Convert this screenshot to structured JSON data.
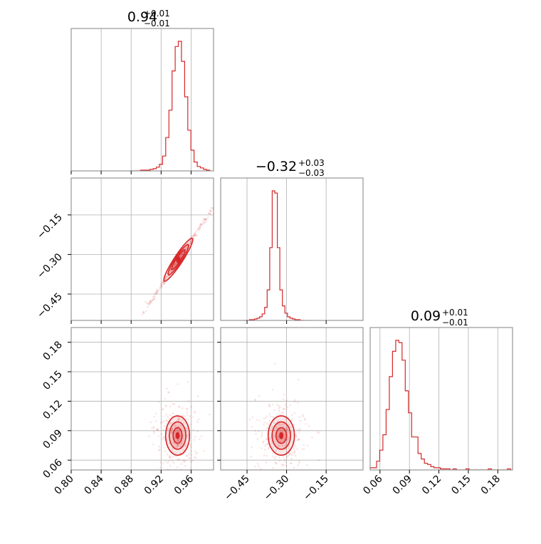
{
  "colors": {
    "accent": "#d62728",
    "grid": "#b0b0b0",
    "frame": "#808080"
  },
  "titles": {
    "p1": {
      "main": "0.94",
      "sup": "+0.01",
      "sub": "−0.01"
    },
    "p2": {
      "main": "−0.32",
      "sup": "+0.03",
      "sub": "−0.03"
    },
    "p3": {
      "main": "0.09",
      "sup": "+0.01",
      "sub": "−0.01"
    }
  },
  "chart_data": {
    "type": "corner",
    "parameters": [
      {
        "range": [
          0.8,
          0.99
        ],
        "ticks": [
          0.8,
          0.84,
          0.88,
          0.92,
          0.96
        ],
        "tick_labels": [
          "0.80",
          "0.84",
          "0.88",
          "0.92",
          "0.96"
        ],
        "median": 0.94
      },
      {
        "range": [
          -0.55,
          -0.01
        ],
        "ticks": [
          -0.45,
          -0.3,
          -0.15
        ],
        "tick_labels": [
          "−0.45",
          "−0.30",
          "−0.15"
        ],
        "median": -0.32
      },
      {
        "range": [
          0.05,
          0.195
        ],
        "ticks": [
          0.06,
          0.09,
          0.12,
          0.15,
          0.18
        ],
        "tick_labels": [
          "0.06",
          "0.09",
          "0.12",
          "0.15",
          "0.18"
        ],
        "median": 0.09
      }
    ],
    "histograms": [
      {
        "param": 0,
        "bin_start": 0.88,
        "bin_width": 0.0042,
        "counts": [
          0,
          0,
          0,
          1,
          1,
          1,
          2,
          3,
          5,
          9,
          20,
          45,
          82,
          135,
          168,
          175,
          148,
          100,
          55,
          28,
          12,
          6,
          4,
          2,
          1
        ]
      },
      {
        "param": 1,
        "bin_start": -0.46,
        "bin_width": 0.0096,
        "counts": [
          0,
          0,
          1,
          1,
          2,
          3,
          5,
          9,
          18,
          42,
          100,
          178,
          175,
          100,
          42,
          20,
          10,
          5,
          3,
          2,
          1,
          1,
          0,
          0
        ]
      },
      {
        "param": 2,
        "bin_start": 0.05,
        "bin_width": 0.00325,
        "counts": [
          2,
          2,
          8,
          18,
          32,
          55,
          85,
          108,
          118,
          116,
          100,
          72,
          52,
          30,
          30,
          15,
          10,
          6,
          5,
          3,
          2,
          2,
          1,
          1,
          1,
          0,
          1,
          0,
          0,
          0,
          1,
          0,
          0,
          0,
          0,
          0,
          0,
          1,
          0,
          0,
          0,
          0,
          0,
          1
        ]
      }
    ],
    "scatter_panels": [
      {
        "x_param": 0,
        "y_param": 1,
        "center": [
          0.943,
          -0.32
        ],
        "contour_radii": [
          [
            0.006,
            0.03
          ],
          [
            0.012,
            0.055
          ],
          [
            0.018,
            0.085
          ]
        ],
        "correlation": "strong positive"
      },
      {
        "x_param": 0,
        "y_param": 2,
        "center": [
          0.942,
          0.085
        ],
        "contour_radii": [
          [
            0.006,
            0.008
          ],
          [
            0.011,
            0.014
          ],
          [
            0.016,
            0.02
          ]
        ],
        "correlation": "none"
      },
      {
        "x_param": 1,
        "y_param": 2,
        "center": [
          -0.32,
          0.085
        ],
        "contour_radii": [
          [
            0.02,
            0.008
          ],
          [
            0.035,
            0.014
          ],
          [
            0.05,
            0.02
          ]
        ],
        "correlation": "none"
      }
    ]
  }
}
